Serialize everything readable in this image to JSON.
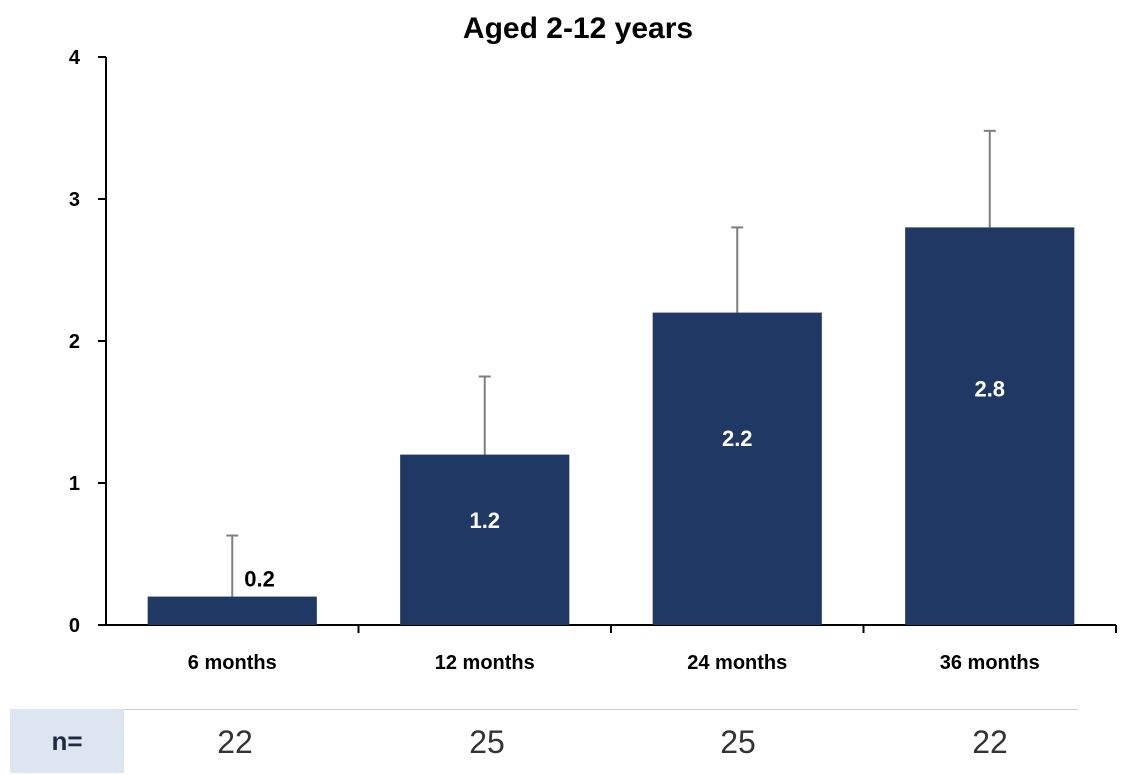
{
  "chart_data": {
    "type": "bar",
    "title": "Aged 2-12 years",
    "categories": [
      "6 months",
      "12 months",
      "24 months",
      "36 months"
    ],
    "values": [
      0.2,
      1.2,
      2.2,
      2.8
    ],
    "error_upper": [
      0.63,
      1.75,
      2.8,
      3.48
    ],
    "data_labels": [
      "0.2",
      "1.2",
      "2.2",
      "2.8"
    ],
    "ylim": [
      0,
      4
    ],
    "yticks": [
      "0",
      "1",
      "2",
      "3",
      "4"
    ],
    "xlabel": "",
    "ylabel": "",
    "grid": false,
    "bar_color": "#203864",
    "error_bar_color": "#7f7f7f"
  },
  "n_row": {
    "label": "n=",
    "values": [
      "22",
      "25",
      "25",
      "22"
    ]
  }
}
